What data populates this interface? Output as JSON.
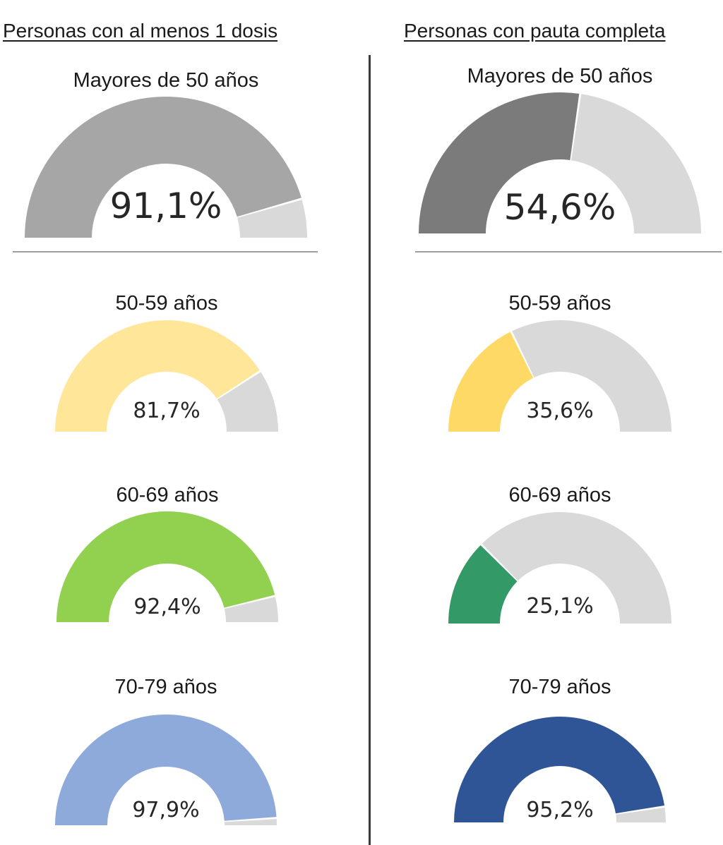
{
  "headers": {
    "left": "Personas con al menos 1 dosis",
    "right": "Personas con pauta completa"
  },
  "chart_data": [
    {
      "type": "gauge",
      "column": "Personas con al menos 1 dosis",
      "title": "Mayores de 50 años",
      "value": 91.1,
      "value_label": "91,1%",
      "color": "#a6a6a6",
      "track_color": "#d9d9d9"
    },
    {
      "type": "gauge",
      "column": "Personas con al menos 1 dosis",
      "title": "50-59 años",
      "value": 81.7,
      "value_label": "81,7%",
      "color": "#ffe699",
      "track_color": "#d9d9d9"
    },
    {
      "type": "gauge",
      "column": "Personas con al menos 1 dosis",
      "title": "60-69 años",
      "value": 92.4,
      "value_label": "92,4%",
      "color": "#92d050",
      "track_color": "#d9d9d9"
    },
    {
      "type": "gauge",
      "column": "Personas con al menos 1 dosis",
      "title": "70-79 años",
      "value": 97.9,
      "value_label": "97,9%",
      "color": "#8eaadb",
      "track_color": "#d9d9d9"
    },
    {
      "type": "gauge",
      "column": "Personas con pauta completa",
      "title": "Mayores de 50 años",
      "value": 54.6,
      "value_label": "54,6%",
      "color": "#7b7b7b",
      "track_color": "#d9d9d9"
    },
    {
      "type": "gauge",
      "column": "Personas con pauta completa",
      "title": "50-59 años",
      "value": 35.6,
      "value_label": "35,6%",
      "color": "#ffd966",
      "track_color": "#d9d9d9"
    },
    {
      "type": "gauge",
      "column": "Personas con pauta completa",
      "title": "60-69 años",
      "value": 25.1,
      "value_label": "25,1%",
      "color": "#339966",
      "track_color": "#d9d9d9"
    },
    {
      "type": "gauge",
      "column": "Personas con pauta completa",
      "title": "70-79 años",
      "value": 95.2,
      "value_label": "95,2%",
      "color": "#2f5597",
      "track_color": "#d9d9d9"
    }
  ]
}
